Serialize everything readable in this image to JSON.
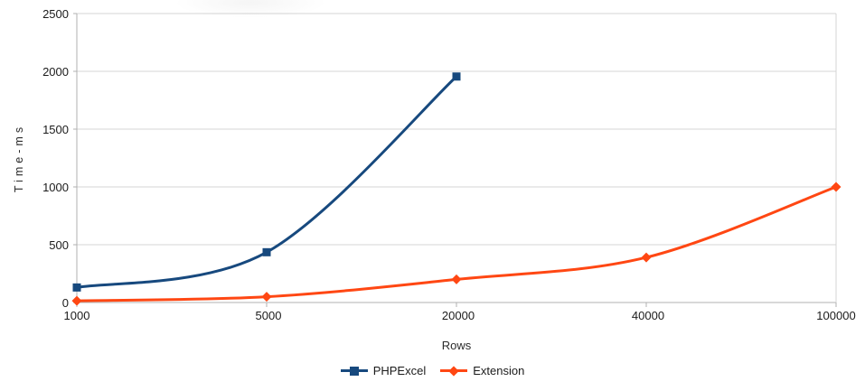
{
  "chart_data": {
    "type": "line",
    "xlabel": "Rows",
    "ylabel": "Time-ms",
    "categories": [
      "1000",
      "5000",
      "20000",
      "40000",
      "100000"
    ],
    "series": [
      {
        "name": "PHPExcel",
        "color": "#17497E",
        "marker": "square",
        "values": [
          130,
          435,
          1955
        ]
      },
      {
        "name": "Extension",
        "color": "#FF4713",
        "marker": "diamond",
        "values": [
          15,
          50,
          200,
          390,
          1000
        ]
      }
    ],
    "ylim": [
      0,
      2500
    ],
    "yticks": [
      0,
      500,
      1000,
      1500,
      2000,
      2500
    ],
    "grid": "horizontal",
    "smooth_lines": true,
    "legend_position": "bottom-center",
    "grid_color": "#d4d4d4",
    "axis_color": "#b1b1b1",
    "text_color": "#1b1b1b"
  }
}
